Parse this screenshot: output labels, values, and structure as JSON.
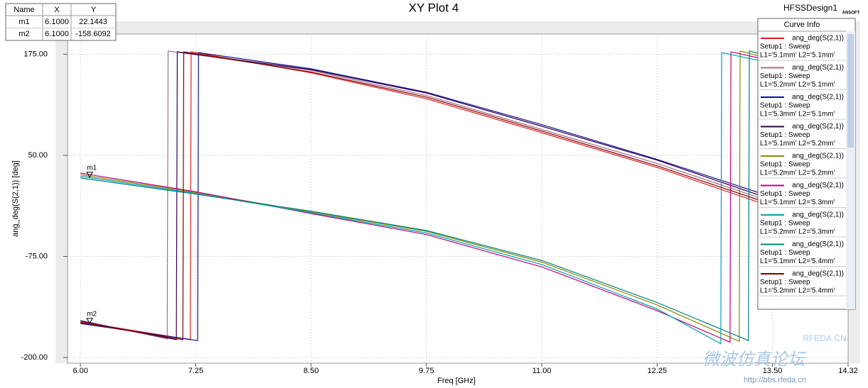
{
  "chart_data": {
    "type": "line",
    "title": "XY Plot 4",
    "design": "HFSSDesign1",
    "logo": "ANSOFT",
    "x_label": "Freq [GHz]",
    "y_label": "ang_deg(S(2,1)) [deg]",
    "xlim": [
      5.86,
      14.32
    ],
    "ylim": [
      -207,
      200
    ],
    "xticks": [
      {
        "value": 6,
        "label": "6.00"
      },
      {
        "value": 7.25,
        "label": "7.25"
      },
      {
        "value": 8.5,
        "label": "8.50"
      },
      {
        "value": 9.75,
        "label": "9.75"
      },
      {
        "value": 11,
        "label": "11.00"
      },
      {
        "value": 12.25,
        "label": "12.25"
      },
      {
        "value": 13.5,
        "label": "13.50"
      },
      {
        "value": 14.32,
        "label": "14.32"
      }
    ],
    "yticks": [
      {
        "value": 175,
        "label": "175.00"
      },
      {
        "value": 50,
        "label": "50.00"
      },
      {
        "value": -75,
        "label": "-75.00"
      },
      {
        "value": -200,
        "label": "-200.00"
      }
    ],
    "grid": true,
    "legend_title": "Curve Info",
    "marker_table_header": [
      "Name",
      "X",
      "Y"
    ],
    "markers": [
      {
        "name": "m1",
        "x": 6.1,
        "y": 22.1443,
        "x_label": "6.1000",
        "y_label": "22.1443"
      },
      {
        "name": "m2",
        "x": 6.1,
        "y": -158.6092,
        "x_label": "6.1000",
        "y_label": "-158.6092"
      }
    ],
    "series": [
      {
        "name": "ang_deg(S(2,1))",
        "setup": "Setup1 : Sweep",
        "params": "L1='5.1mm' L2='5.1mm'",
        "color": "#e02020",
        "x": [
          6.0,
          7.19,
          7.2,
          8.5,
          9.75,
          11.0,
          12.25,
          13.4
        ],
        "values": [
          -156,
          -178,
          178,
          152,
          120,
          78,
          35,
          -10
        ]
      },
      {
        "name": "ang_deg(S(2,1))",
        "setup": "Setup1 : Sweep",
        "params": "L1='5.2mm' L2='5.1mm'",
        "color": "#a07090",
        "x": [
          6.0,
          6.94,
          6.95,
          8.5,
          9.75,
          11.0,
          12.25,
          13.4
        ],
        "values": [
          -154,
          -177,
          179,
          155,
          124,
          82,
          40,
          -4
        ]
      },
      {
        "name": "ang_deg(S(2,1))",
        "setup": "Setup1 : Sweep",
        "params": "L1='5.3mm' L2='5.1mm'",
        "color": "#101090",
        "x": [
          6.0,
          7.27,
          7.28,
          8.5,
          9.75,
          11.0,
          12.25,
          13.4
        ],
        "values": [
          -158,
          -179,
          177,
          157,
          128,
          88,
          45,
          2
        ]
      },
      {
        "name": "ang_deg(S(2,1))",
        "setup": "Setup1 : Sweep",
        "params": "L1='5.1mm' L2='5.2mm'",
        "color": "#300050",
        "x": [
          6.0,
          7.04,
          7.05,
          8.5,
          9.75,
          11.0,
          12.25,
          13.4
        ],
        "values": [
          -155,
          -178,
          178,
          156,
          127,
          86,
          44,
          -1
        ]
      },
      {
        "name": "ang_deg(S(2,1))",
        "setup": "Setup1 : Sweep",
        "params": "L1='5.2mm' L2='5.2mm'",
        "color": "#8a8a00",
        "x": [
          6.0,
          7.25,
          8.5,
          9.75,
          11.0,
          12.25,
          13.14,
          13.15,
          13.45
        ],
        "values": [
          26,
          4,
          -20,
          -44,
          -82,
          -135,
          -180,
          179,
          170
        ]
      },
      {
        "name": "ang_deg(S(2,1))",
        "setup": "Setup1 : Sweep",
        "params": "L1='5.1mm' L2='5.3mm'",
        "color": "#c0007a",
        "x": [
          6.0,
          7.25,
          8.5,
          9.75,
          11.0,
          12.25,
          13.04,
          13.05,
          13.45
        ],
        "values": [
          28,
          5,
          -22,
          -48,
          -88,
          -142,
          -181,
          178,
          168
        ]
      },
      {
        "name": "ang_deg(S(2,1))",
        "setup": "Setup1 : Sweep",
        "params": "L1='5.2mm' L2='5.3mm'",
        "color": "#00a0b0",
        "x": [
          6.0,
          7.25,
          8.5,
          9.75,
          11.0,
          12.25,
          12.94,
          12.95,
          13.45
        ],
        "values": [
          24,
          3,
          -21,
          -46,
          -85,
          -140,
          -183,
          177,
          165
        ]
      },
      {
        "name": "ang_deg(S(2,1))",
        "setup": "Setup1 : Sweep",
        "params": "L1='5.1mm' L2='5.4mm'",
        "color": "#008080",
        "x": [
          6.0,
          7.25,
          8.5,
          9.75,
          11.0,
          12.25,
          13.24,
          13.25,
          13.45
        ],
        "values": [
          22,
          2,
          -19,
          -43,
          -80,
          -132,
          -179,
          179,
          173
        ]
      },
      {
        "name": "ang_deg(S(2,1))",
        "setup": "Setup1 : Sweep",
        "params": "L1='5.2mm' L2='5.4mm'",
        "color": "#800000",
        "x": [
          6.0,
          7.11,
          7.12,
          8.5,
          9.75,
          11.0,
          12.25,
          13.4
        ],
        "values": [
          -157,
          -178,
          178,
          153,
          122,
          80,
          37,
          -7
        ]
      }
    ],
    "watermark": [
      "RFEDA.CN",
      "微波仿真论坛",
      "http://bbs.rfeda.cn"
    ]
  }
}
